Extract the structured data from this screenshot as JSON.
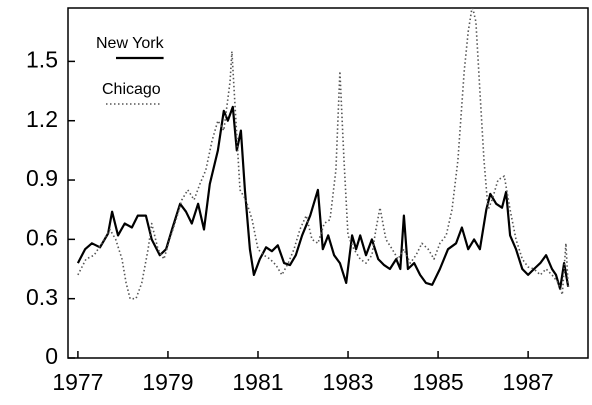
{
  "chart_data": {
    "type": "line",
    "legend": "upper left",
    "xlim": [
      1976.78,
      1988.33
    ],
    "xticks": [
      1977,
      1979,
      1981,
      1983,
      1985,
      1987
    ],
    "ylim": [
      0,
      1.77
    ],
    "yticks": [
      0,
      0.3,
      0.6,
      0.9,
      1.2,
      1.5
    ],
    "series": [
      {
        "name": "New York",
        "color": "#000000",
        "style": "solid",
        "x": [
          1977.0,
          1977.16,
          1977.31,
          1977.49,
          1977.67,
          1977.76,
          1977.89,
          1978.04,
          1978.2,
          1978.33,
          1978.51,
          1978.64,
          1978.82,
          1978.96,
          1979.09,
          1979.27,
          1979.4,
          1979.53,
          1979.67,
          1979.8,
          1979.93,
          1980.11,
          1980.24,
          1980.33,
          1980.44,
          1980.53,
          1980.62,
          1980.71,
          1980.82,
          1980.91,
          1981.04,
          1981.18,
          1981.31,
          1981.44,
          1981.58,
          1981.71,
          1981.84,
          1981.98,
          1982.16,
          1982.33,
          1982.44,
          1982.56,
          1982.69,
          1982.82,
          1982.96,
          1983.09,
          1983.18,
          1983.27,
          1983.4,
          1983.53,
          1983.67,
          1983.8,
          1983.93,
          1984.07,
          1984.16,
          1984.24,
          1984.33,
          1984.47,
          1984.6,
          1984.73,
          1984.87,
          1985.04,
          1985.22,
          1985.4,
          1985.53,
          1985.67,
          1985.8,
          1985.93,
          1986.07,
          1986.16,
          1986.29,
          1986.42,
          1986.51,
          1986.6,
          1986.73,
          1986.87,
          1987.0,
          1987.13,
          1987.27,
          1987.4,
          1987.53,
          1987.62,
          1987.71,
          1987.8,
          1987.89
        ],
        "values": [
          0.48,
          0.55,
          0.58,
          0.56,
          0.63,
          0.74,
          0.62,
          0.68,
          0.66,
          0.72,
          0.72,
          0.6,
          0.52,
          0.55,
          0.65,
          0.78,
          0.74,
          0.68,
          0.78,
          0.65,
          0.88,
          1.05,
          1.25,
          1.2,
          1.27,
          1.05,
          1.15,
          0.85,
          0.55,
          0.42,
          0.5,
          0.56,
          0.54,
          0.57,
          0.48,
          0.47,
          0.52,
          0.62,
          0.72,
          0.85,
          0.55,
          0.62,
          0.52,
          0.48,
          0.38,
          0.62,
          0.55,
          0.62,
          0.52,
          0.6,
          0.5,
          0.47,
          0.45,
          0.5,
          0.45,
          0.72,
          0.45,
          0.48,
          0.42,
          0.38,
          0.37,
          0.45,
          0.55,
          0.58,
          0.66,
          0.55,
          0.6,
          0.55,
          0.75,
          0.83,
          0.78,
          0.76,
          0.84,
          0.62,
          0.55,
          0.45,
          0.42,
          0.45,
          0.48,
          0.52,
          0.45,
          0.42,
          0.35,
          0.48,
          0.36
        ]
      },
      {
        "name": "Chicago",
        "color": "#555555",
        "style": "dotted",
        "x": [
          1977.0,
          1977.18,
          1977.36,
          1977.53,
          1977.71,
          1977.84,
          1977.98,
          1978.07,
          1978.16,
          1978.29,
          1978.42,
          1978.56,
          1978.64,
          1978.78,
          1978.91,
          1979.04,
          1979.18,
          1979.31,
          1979.44,
          1979.58,
          1979.71,
          1979.84,
          1979.98,
          1980.11,
          1980.24,
          1980.38,
          1980.42,
          1980.51,
          1980.6,
          1980.73,
          1980.87,
          1981.0,
          1981.13,
          1981.27,
          1981.4,
          1981.53,
          1981.67,
          1981.8,
          1981.93,
          1982.07,
          1982.2,
          1982.33,
          1982.47,
          1982.6,
          1982.73,
          1982.82,
          1982.91,
          1983.0,
          1983.13,
          1983.27,
          1983.4,
          1983.53,
          1983.62,
          1983.71,
          1983.84,
          1983.98,
          1984.11,
          1984.24,
          1984.38,
          1984.51,
          1984.64,
          1984.78,
          1984.91,
          1985.04,
          1985.18,
          1985.31,
          1985.44,
          1985.58,
          1985.67,
          1985.76,
          1985.84,
          1985.93,
          1986.02,
          1986.11,
          1986.2,
          1986.33,
          1986.47,
          1986.6,
          1986.73,
          1986.87,
          1987.0,
          1987.13,
          1987.27,
          1987.4,
          1987.53,
          1987.67,
          1987.76,
          1987.84,
          1987.89
        ],
        "values": [
          0.42,
          0.5,
          0.52,
          0.58,
          0.65,
          0.6,
          0.5,
          0.38,
          0.3,
          0.3,
          0.38,
          0.55,
          0.68,
          0.55,
          0.5,
          0.6,
          0.7,
          0.8,
          0.85,
          0.8,
          0.88,
          0.95,
          1.1,
          1.2,
          1.15,
          1.4,
          1.55,
          1.2,
          0.85,
          0.8,
          0.7,
          0.55,
          0.52,
          0.5,
          0.47,
          0.42,
          0.48,
          0.55,
          0.65,
          0.72,
          0.6,
          0.58,
          0.68,
          0.7,
          0.95,
          1.45,
          1.0,
          0.62,
          0.55,
          0.5,
          0.48,
          0.52,
          0.65,
          0.76,
          0.6,
          0.55,
          0.5,
          0.55,
          0.48,
          0.52,
          0.58,
          0.55,
          0.5,
          0.58,
          0.62,
          0.75,
          1.0,
          1.45,
          1.65,
          1.78,
          1.7,
          1.35,
          1.0,
          0.75,
          0.8,
          0.9,
          0.92,
          0.75,
          0.6,
          0.5,
          0.46,
          0.45,
          0.42,
          0.45,
          0.42,
          0.38,
          0.32,
          0.58,
          0.36
        ]
      }
    ]
  }
}
